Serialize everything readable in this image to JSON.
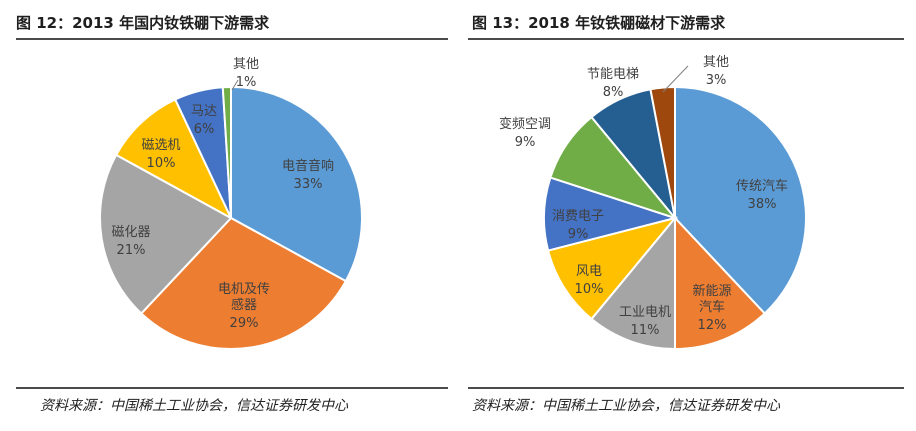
{
  "charts": [
    {
      "title": "图 12：2013 年国内钕铁硼下游需求",
      "source": "资料来源：中国稀土工业协会，信达证券研发中心"
    },
    {
      "title": "图 13：2018 年钕铁硼磁材下游需求",
      "source": "资料来源：中国稀土工业协会，信达证券研发中心"
    }
  ],
  "chart_data": [
    {
      "type": "pie",
      "slices": [
        {
          "label": "电音音响",
          "value": 33,
          "value_label": "33%",
          "color": "#5b9bd5"
        },
        {
          "label": "电机及传感器",
          "value": 29,
          "value_label": "29%",
          "color": "#ed7d31"
        },
        {
          "label": "磁化器",
          "value": 21,
          "value_label": "21%",
          "color": "#a5a5a5"
        },
        {
          "label": "磁选机",
          "value": 10,
          "value_label": "10%",
          "color": "#ffc000"
        },
        {
          "label": "马达",
          "value": 6,
          "value_label": "6%",
          "color": "#4472c4"
        },
        {
          "label": "其他",
          "value": 1,
          "value_label": "1%",
          "color": "#70ad47"
        }
      ]
    },
    {
      "type": "pie",
      "slices": [
        {
          "label": "传统汽车",
          "value": 38,
          "value_label": "38%",
          "color": "#5b9bd5"
        },
        {
          "label": "新能源汽车",
          "value": 12,
          "value_label": "12%",
          "color": "#ed7d31"
        },
        {
          "label": "工业电机",
          "value": 11,
          "value_label": "11%",
          "color": "#a5a5a5"
        },
        {
          "label": "风电",
          "value": 10,
          "value_label": "10%",
          "color": "#ffc000"
        },
        {
          "label": "消费电子",
          "value": 9,
          "value_label": "9%",
          "color": "#4472c4"
        },
        {
          "label": "变频空调",
          "value": 9,
          "value_label": "9%",
          "color": "#70ad47"
        },
        {
          "label": "节能电梯",
          "value": 8,
          "value_label": "8%",
          "color": "#255e91"
        },
        {
          "label": "其他",
          "value": 3,
          "value_label": "3%",
          "color": "#9e480e"
        }
      ]
    }
  ]
}
